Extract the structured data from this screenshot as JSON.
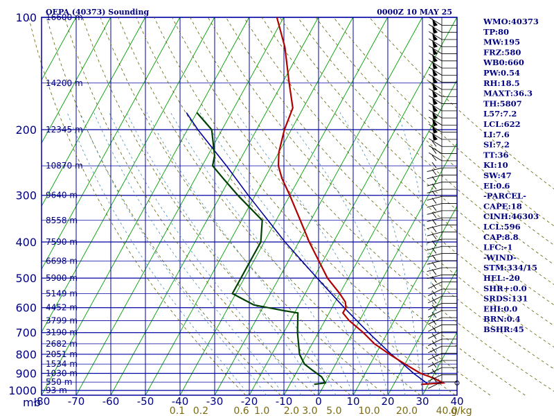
{
  "chart_data": {
    "type": "skew-t",
    "title": "OEPA (40373) Sounding",
    "valid_time": "0000Z 10 MAY 25",
    "pressure_unit": "mb",
    "mixing_ratio_unit": "g/kg",
    "pressure_levels": [
      "100",
      "200",
      "300",
      "400",
      "500",
      "600",
      "700",
      "800",
      "900",
      "1000"
    ],
    "temperature_ticks": [
      "-80",
      "-70",
      "-60",
      "-50",
      "-40",
      "-30",
      "-20",
      "-10",
      "0",
      "10",
      "20",
      "30",
      "40"
    ],
    "mixing_ratio_labels": [
      "0.1",
      "0.2",
      "0.6",
      "1.0",
      "2.0",
      "3.0",
      "5.0",
      "10.0",
      "20.0",
      "40.0"
    ],
    "height_labels": [
      {
        "p": 100,
        "h": "16600 m"
      },
      {
        "p": 150,
        "h": "14200 m"
      },
      {
        "p": 200,
        "h": "12345 m"
      },
      {
        "p": 250,
        "h": "10870 m"
      },
      {
        "p": 300,
        "h": "9640 m"
      },
      {
        "p": 350,
        "h": "8558 m"
      },
      {
        "p": 400,
        "h": "7590 m"
      },
      {
        "p": 450,
        "h": "6698 m"
      },
      {
        "p": 500,
        "h": "5900 m"
      },
      {
        "p": 550,
        "h": "5149 m"
      },
      {
        "p": 600,
        "h": "4452 m"
      },
      {
        "p": 650,
        "h": "3799 m"
      },
      {
        "p": 700,
        "h": "3190 m"
      },
      {
        "p": 750,
        "h": "2682 m"
      },
      {
        "p": 800,
        "h": "2051 m"
      },
      {
        "p": 850,
        "h": "1534 m"
      },
      {
        "p": 900,
        "h": "1030 m"
      },
      {
        "p": 950,
        "h": "550 m"
      },
      {
        "p": 1000,
        "h": "93 m"
      }
    ],
    "temperature_profile": [
      [
        963,
        28
      ],
      [
        955,
        34
      ],
      [
        930,
        31
      ],
      [
        900,
        26
      ],
      [
        850,
        20
      ],
      [
        800,
        14
      ],
      [
        750,
        8
      ],
      [
        700,
        3
      ],
      [
        650,
        -3
      ],
      [
        620,
        -6
      ],
      [
        600,
        -6
      ],
      [
        580,
        -7
      ],
      [
        550,
        -10
      ],
      [
        500,
        -16
      ],
      [
        400,
        -27
      ],
      [
        350,
        -33
      ],
      [
        300,
        -40
      ],
      [
        270,
        -45
      ],
      [
        250,
        -48
      ],
      [
        230,
        -50
      ],
      [
        200,
        -52
      ],
      [
        175,
        -53
      ],
      [
        150,
        -58
      ],
      [
        120,
        -65
      ],
      [
        100,
        -72
      ]
    ],
    "dewpoint_profile": [
      [
        963,
        -3
      ],
      [
        955,
        0
      ],
      [
        920,
        -2
      ],
      [
        880,
        -6
      ],
      [
        850,
        -9
      ],
      [
        800,
        -12
      ],
      [
        700,
        -16
      ],
      [
        620,
        -19
      ],
      [
        610,
        -24
      ],
      [
        590,
        -33
      ],
      [
        550,
        -41
      ],
      [
        500,
        -41
      ],
      [
        450,
        -41
      ],
      [
        400,
        -41
      ],
      [
        350,
        -44
      ],
      [
        300,
        -55
      ],
      [
        270,
        -62
      ],
      [
        250,
        -67
      ],
      [
        235,
        -68
      ],
      [
        200,
        -73
      ],
      [
        180,
        -80
      ]
    ],
    "parcel_profile": [
      [
        963,
        30
      ],
      [
        900,
        24
      ],
      [
        850,
        19.5
      ],
      [
        800,
        14.5
      ],
      [
        700,
        4.5
      ],
      [
        600,
        -6.5
      ],
      [
        500,
        -19
      ],
      [
        400,
        -34
      ],
      [
        300,
        -52
      ],
      [
        250,
        -63
      ],
      [
        200,
        -77
      ],
      [
        180,
        -83
      ]
    ],
    "indices": [
      "WMO:40373",
      "TP:80",
      "MW:195",
      "FRZ:580",
      "WB0:660",
      "PW:0.54",
      "RH:18.5",
      "MAXT:36.3",
      "TH:5807",
      "L57:7.2",
      "LCL:622",
      "LI:7.6",
      "SI:7.2",
      "TT:36",
      "KI:10",
      "SW:47",
      "EI:0.6",
      "-PARCEL-",
      "CAPE:18",
      "CINH:46303",
      "LCL:596",
      "CAP:8.8",
      "LFC:-1",
      "-WIND-",
      "STM:334/15",
      "HEL:-20",
      "SHR+:0.0",
      "SRDS:131",
      "EHI:0.0",
      "BRN:0.4",
      "BSHR:45"
    ],
    "colors": {
      "frame": "#0000a0",
      "isobar": "#0000a0",
      "isotherm": "#00a000",
      "temperature": "#b00000",
      "dewpoint": "#004000",
      "parcel": "#0000a0",
      "dry_adiabat": "#606000",
      "moist_adiabat": "#4a8ab0"
    }
  }
}
